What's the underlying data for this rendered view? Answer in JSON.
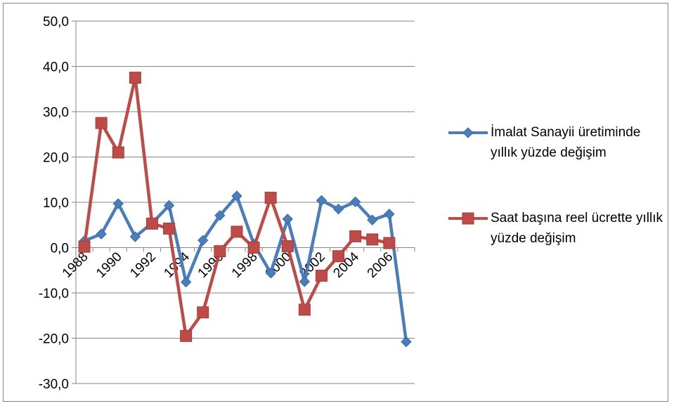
{
  "chart_data": {
    "type": "line",
    "title": "",
    "xlabel": "",
    "ylabel": "",
    "ylim": [
      -30,
      50
    ],
    "y_ticks": [
      "50,0",
      "40,0",
      "30,0",
      "20,0",
      "10,0",
      "0,0",
      "-10,0",
      "-20,0",
      "-30,0"
    ],
    "y_tick_values": [
      50,
      40,
      30,
      20,
      10,
      0,
      -10,
      -20,
      -30
    ],
    "x_tick_labels": [
      "1988",
      "1990",
      "1992",
      "1994",
      "1996",
      "1998",
      "2000",
      "2002",
      "2004",
      "2006"
    ],
    "x": [
      1988,
      1989,
      1990,
      1991,
      1992,
      1993,
      1994,
      1995,
      1996,
      1997,
      1998,
      1999,
      2000,
      2001,
      2002,
      2003,
      2004,
      2005,
      2006,
      2007
    ],
    "grid": true,
    "legend_position": "right",
    "series": [
      {
        "name": "İmalat Sanayii üretiminde yıllık yüzde değişim",
        "color": "#4a7ebb",
        "marker": "diamond",
        "values": [
          1.5,
          3.0,
          9.7,
          2.4,
          5.4,
          9.3,
          -7.6,
          1.6,
          7.1,
          11.4,
          0.8,
          -5.6,
          6.3,
          -7.5,
          10.4,
          8.5,
          10.1,
          6.1,
          7.4,
          -20.8
        ]
      },
      {
        "name": "Saat başına reel ücrette yıllık yüzde değişim",
        "color": "#be4b48",
        "marker": "square",
        "values": [
          0.2,
          27.5,
          21.0,
          37.5,
          5.3,
          4.2,
          -19.5,
          -14.3,
          -0.8,
          3.5,
          0.0,
          11.0,
          0.3,
          -13.7,
          -6.2,
          -1.9,
          2.5,
          1.8,
          1.0,
          null
        ]
      }
    ]
  }
}
